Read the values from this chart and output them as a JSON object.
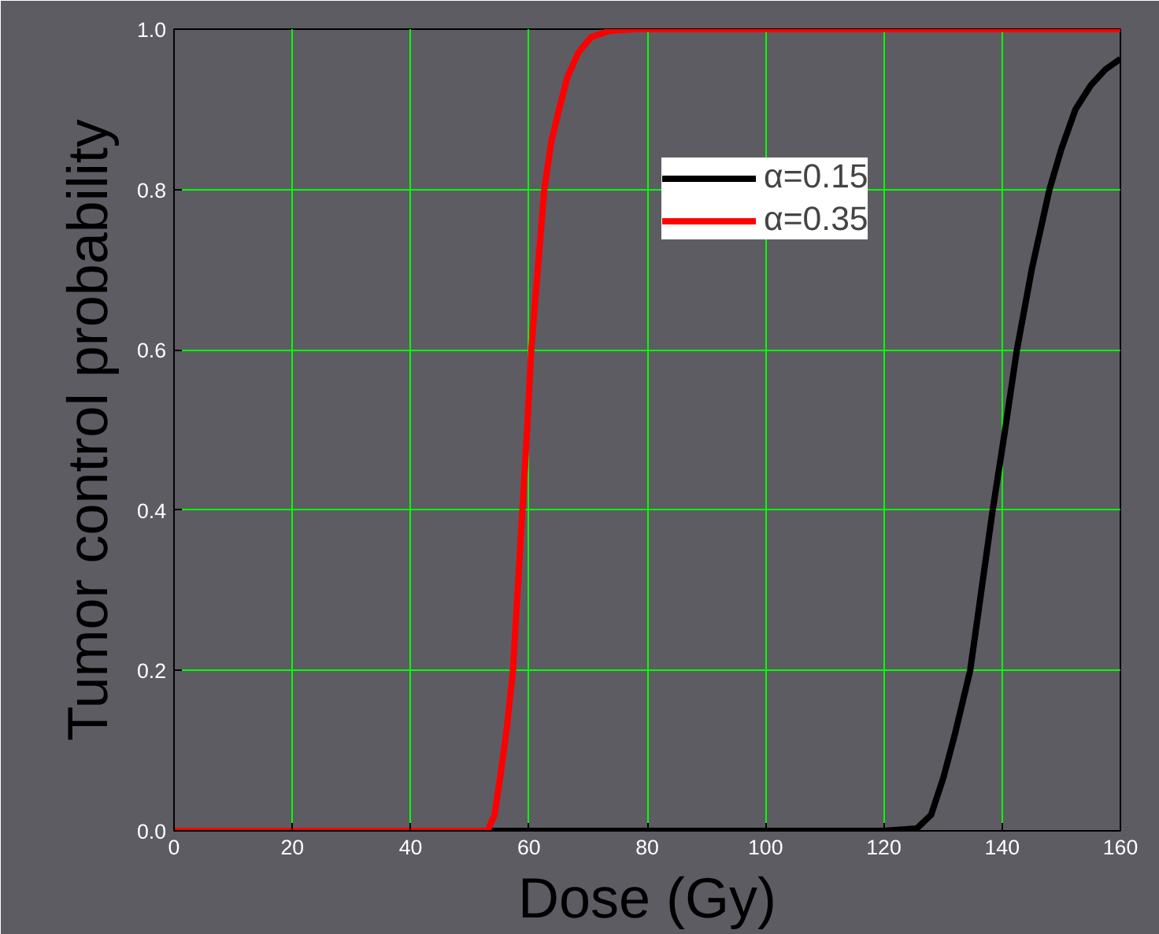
{
  "chart_data": {
    "type": "line",
    "xlabel": "Dose (Gy)",
    "ylabel": "Tumor control probability",
    "xlim": [
      0,
      160
    ],
    "ylim": [
      0,
      1.0
    ],
    "xticks": [
      0,
      20,
      40,
      60,
      80,
      100,
      120,
      140,
      160
    ],
    "yticks": [
      {
        "value": 0,
        "label": "0.0"
      },
      0.2,
      0.4,
      0.6,
      0.8,
      {
        "value": 1.0,
        "label": "1.0"
      }
    ],
    "grid": true,
    "legend": "top right",
    "line_style": "solid",
    "marker": "none",
    "series": [
      {
        "name": "α=0.15",
        "color": "#000000",
        "x": [
          0,
          60,
          120,
          125.6,
          128,
          130.1,
          132,
          134.6,
          136.5,
          138.4,
          140.5,
          142.5,
          145,
          148,
          150,
          152.4,
          155,
          157.5,
          160
        ],
        "values": [
          0,
          0,
          0,
          0.003,
          0.02,
          0.067,
          0.12,
          0.2,
          0.3,
          0.4,
          0.5,
          0.6,
          0.7,
          0.8,
          0.85,
          0.9,
          0.93,
          0.95,
          0.963
        ]
      },
      {
        "name": "α=0.35",
        "color": "#ff0000",
        "x": [
          0,
          20,
          40,
          50,
          53,
          54.2,
          55.3,
          56.3,
          57.3,
          58.1,
          58.9,
          59.7,
          60.4,
          61.5,
          62.6,
          63.8,
          65.1,
          66.5,
          68.3,
          70.5,
          73.7,
          78,
          100,
          130,
          160
        ],
        "values": [
          0,
          0,
          0,
          0,
          0,
          0.02,
          0.075,
          0.13,
          0.2,
          0.3,
          0.4,
          0.5,
          0.6,
          0.7,
          0.8,
          0.86,
          0.9,
          0.94,
          0.97,
          0.99,
          0.998,
          1.0,
          1.0,
          1.0,
          1.0
        ]
      }
    ]
  }
}
